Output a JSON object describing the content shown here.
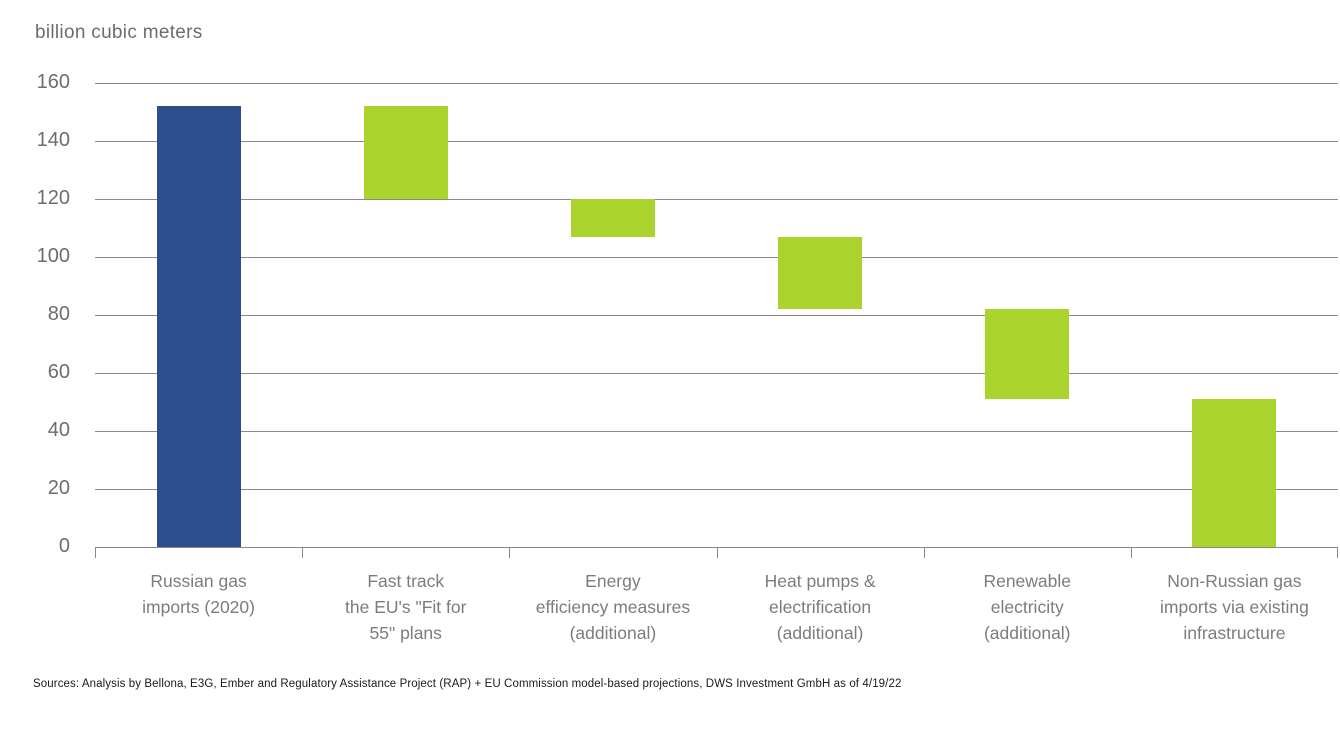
{
  "chart_data": {
    "type": "bar",
    "subtype": "waterfall",
    "title": "billion cubic meters",
    "xlabel": "",
    "ylabel": "billion cubic meters",
    "ylim": [
      0,
      160
    ],
    "yticks": [
      0,
      20,
      40,
      60,
      80,
      100,
      120,
      140,
      160
    ],
    "grid": true,
    "legend": "none",
    "categories": [
      {
        "name": "russian-gas-imports-2020",
        "label_lines": [
          "Russian gas",
          "imports (2020)"
        ],
        "start": 0,
        "end": 152,
        "change": 152,
        "color": "#2d4e8c"
      },
      {
        "name": "fast-track-fit-for-55",
        "label_lines": [
          "Fast track",
          "the EU's \"Fit for",
          "55\" plans"
        ],
        "start": 120,
        "end": 152,
        "change": -32,
        "color": "#aad32e"
      },
      {
        "name": "energy-efficiency-measures",
        "label_lines": [
          "Energy",
          "efficiency measures",
          "(additional)"
        ],
        "start": 107,
        "end": 120,
        "change": -13,
        "color": "#aad32e"
      },
      {
        "name": "heat-pumps-electrification",
        "label_lines": [
          "Heat pumps &",
          "electrification",
          "(additional)"
        ],
        "start": 82,
        "end": 107,
        "change": -25,
        "color": "#aad32e"
      },
      {
        "name": "renewable-electricity",
        "label_lines": [
          "Renewable",
          "electricity",
          "(additional)"
        ],
        "start": 51,
        "end": 82,
        "change": -31,
        "color": "#aad32e"
      },
      {
        "name": "non-russian-gas-imports",
        "label_lines": [
          "Non-Russian gas",
          "imports via existing",
          "infrastructure"
        ],
        "start": 0,
        "end": 51,
        "change": 51,
        "color": "#aad32e"
      }
    ]
  },
  "colors": {
    "base_bar_blue": "#2d4e8c",
    "reduction_bar_green": "#aad32e",
    "gridline_gray": "#8a8a8a",
    "axis_text_gray": "#6d6d6d",
    "category_text_gray": "#7c7c7c",
    "source_text": "#1a1a1a",
    "background": "#ffffff"
  },
  "source_note": "Sources: Analysis by Bellona, E3G, Ember and Regulatory Assistance Project (RAP) + EU Commission model-based projections, DWS Investment GmbH as of 4/19/22"
}
